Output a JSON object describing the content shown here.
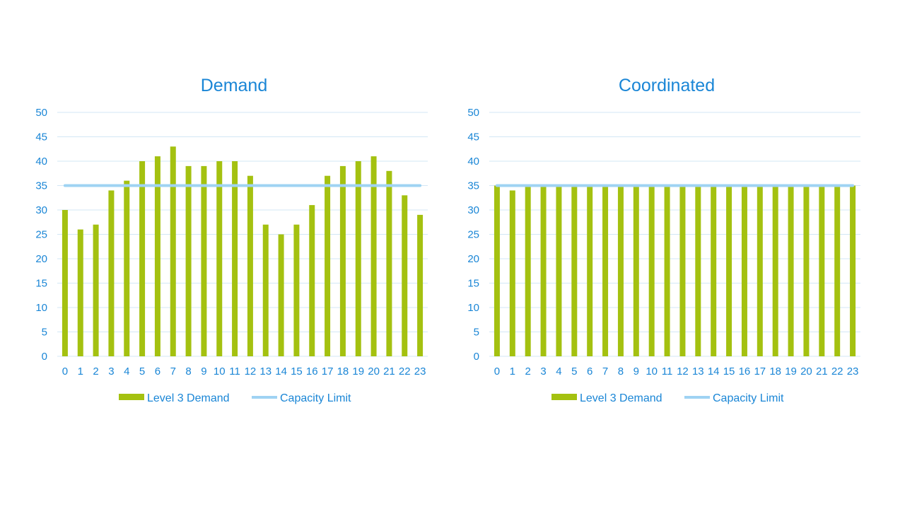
{
  "colors": {
    "bar": "#a4c110",
    "capacity_line": "#9fd3f3",
    "text": "#1a86d6",
    "grid": "#d3e7f5"
  },
  "chart_data": [
    {
      "type": "bar",
      "title": "Demand",
      "categories": [
        "0",
        "1",
        "2",
        "3",
        "4",
        "5",
        "6",
        "7",
        "8",
        "9",
        "10",
        "11",
        "12",
        "13",
        "14",
        "15",
        "16",
        "17",
        "18",
        "19",
        "20",
        "21",
        "22",
        "23"
      ],
      "series": [
        {
          "name": "Level 3 Demand",
          "type": "bar",
          "values": [
            30,
            26,
            27,
            34,
            36,
            40,
            41,
            43,
            39,
            39,
            40,
            40,
            37,
            27,
            25,
            27,
            31,
            37,
            39,
            40,
            41,
            38,
            33,
            29
          ]
        },
        {
          "name": "Capacity Limit",
          "type": "line",
          "values": [
            35,
            35,
            35,
            35,
            35,
            35,
            35,
            35,
            35,
            35,
            35,
            35,
            35,
            35,
            35,
            35,
            35,
            35,
            35,
            35,
            35,
            35,
            35,
            35
          ]
        }
      ],
      "y_ticks": [
        0,
        5,
        10,
        15,
        20,
        25,
        30,
        35,
        40,
        45,
        50
      ],
      "ylim": [
        0,
        50
      ],
      "grid": true,
      "legend": "bottom"
    },
    {
      "type": "bar",
      "title": "Coordinated",
      "categories": [
        "0",
        "1",
        "2",
        "3",
        "4",
        "5",
        "6",
        "7",
        "8",
        "9",
        "10",
        "11",
        "12",
        "13",
        "14",
        "15",
        "16",
        "17",
        "18",
        "19",
        "20",
        "21",
        "22",
        "23"
      ],
      "series": [
        {
          "name": "Level 3 Demand",
          "type": "bar",
          "values": [
            35,
            34,
            35,
            35,
            35,
            35,
            35,
            35,
            35,
            35,
            35,
            35,
            35,
            35,
            35,
            35,
            35,
            35,
            35,
            35,
            35,
            35,
            35,
            35
          ]
        },
        {
          "name": "Capacity Limit",
          "type": "line",
          "values": [
            35,
            35,
            35,
            35,
            35,
            35,
            35,
            35,
            35,
            35,
            35,
            35,
            35,
            35,
            35,
            35,
            35,
            35,
            35,
            35,
            35,
            35,
            35,
            35
          ]
        }
      ],
      "y_ticks": [
        0,
        5,
        10,
        15,
        20,
        25,
        30,
        35,
        40,
        45,
        50
      ],
      "ylim": [
        0,
        50
      ],
      "grid": true,
      "legend": "bottom"
    }
  ]
}
